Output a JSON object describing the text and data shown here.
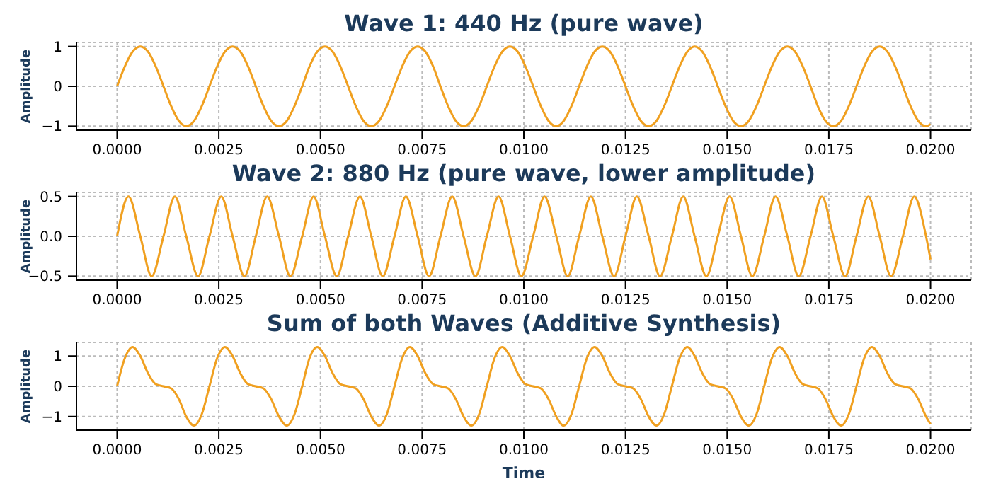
{
  "chart_data": [
    {
      "type": "line",
      "title": "Wave 1: 440 Hz (pure wave)",
      "ylabel": "Amplitude",
      "grid": true,
      "x": [
        0,
        0.00019,
        0.00038,
        0.00057,
        0.00076,
        0.00095,
        0.00114,
        0.00133,
        0.00152,
        0.0017,
        0.00189,
        0.00208,
        0.00227,
        0.00246,
        0.00265,
        0.00284,
        0.00303,
        0.00322,
        0.00341,
        0.0036,
        0.00379,
        0.00398,
        0.00417,
        0.00436,
        0.00455,
        0.00473,
        0.00492,
        0.00511,
        0.0053,
        0.00549,
        0.00568,
        0.00587,
        0.00606,
        0.00625,
        0.00644,
        0.00663,
        0.00682,
        0.00701,
        0.0072,
        0.00739,
        0.00758,
        0.00777,
        0.00795,
        0.00814,
        0.00833,
        0.00852,
        0.00871,
        0.0089,
        0.00909,
        0.00928,
        0.00947,
        0.00966,
        0.00985,
        0.01004,
        0.01023,
        0.01042,
        0.01061,
        0.0108,
        0.01098,
        0.01117,
        0.01136,
        0.01155,
        0.01174,
        0.01193,
        0.01212,
        0.01231,
        0.0125,
        0.01269,
        0.01288,
        0.01307,
        0.01326,
        0.01345,
        0.01364,
        0.01383,
        0.01402,
        0.0142,
        0.01439,
        0.01458,
        0.01477,
        0.01496,
        0.01515,
        0.01534,
        0.01553,
        0.01572,
        0.01591,
        0.0161,
        0.01629,
        0.01648,
        0.01667,
        0.01686,
        0.01705,
        0.01723,
        0.01742,
        0.01761,
        0.0178,
        0.01799,
        0.01818,
        0.01837,
        0.01856,
        0.01875,
        0.01894,
        0.01913,
        0.01932,
        0.01951,
        0.0197,
        0.01989,
        0.02
      ],
      "series": [
        {
          "color": "#f0a020",
          "values": [
            0,
            0.5,
            0.87,
            1,
            0.87,
            0.5,
            0,
            -0.5,
            -0.87,
            -1,
            -0.87,
            -0.5,
            0,
            0.5,
            0.87,
            1,
            0.87,
            0.5,
            0,
            -0.5,
            -0.87,
            -1,
            -0.87,
            -0.5,
            0,
            0.5,
            0.87,
            1,
            0.87,
            0.5,
            0,
            -0.5,
            -0.87,
            -1,
            -0.87,
            -0.5,
            0,
            0.5,
            0.87,
            1,
            0.87,
            0.5,
            0,
            -0.5,
            -0.87,
            -1,
            -0.87,
            -0.5,
            0,
            0.5,
            0.87,
            1,
            0.87,
            0.5,
            0,
            -0.5,
            -0.87,
            -1,
            -0.87,
            -0.5,
            0,
            0.5,
            0.87,
            1,
            0.87,
            0.5,
            0,
            -0.5,
            -0.87,
            -1,
            -0.87,
            -0.5,
            0,
            0.5,
            0.87,
            1,
            0.87,
            0.5,
            0,
            -0.5,
            -0.87,
            -1,
            -0.87,
            -0.5,
            0,
            0.5,
            0.87,
            1,
            0.87,
            0.5,
            0,
            -0.5,
            -0.87,
            -1,
            -0.87,
            -0.5,
            0,
            0.5,
            0.87,
            1,
            0.87,
            0.5,
            0,
            -0.5,
            -0.87,
            -1,
            -0.95
          ]
        }
      ],
      "xlim": [
        -0.001,
        0.021
      ],
      "ylim": [
        -1.1,
        1.1
      ],
      "xticks": [
        {
          "value": 0,
          "label": "0.0000"
        },
        {
          "value": 0.0025,
          "label": "0.0025"
        },
        {
          "value": 0.005,
          "label": "0.0050"
        },
        {
          "value": 0.0075,
          "label": "0.0075"
        },
        {
          "value": 0.01,
          "label": "0.0100"
        },
        {
          "value": 0.0125,
          "label": "0.0125"
        },
        {
          "value": 0.015,
          "label": "0.0150"
        },
        {
          "value": 0.0175,
          "label": "0.0175"
        },
        {
          "value": 0.02,
          "label": "0.0200"
        }
      ],
      "yticks": [
        {
          "value": -1,
          "label": "−1"
        },
        {
          "value": 0,
          "label": "0"
        },
        1
      ]
    },
    {
      "type": "line",
      "title": "Wave 2: 880 Hz (pure wave, lower amplitude)",
      "ylabel": "Amplitude",
      "grid": true,
      "x": [
        0,
        0.00028,
        0.00057,
        0.00085,
        0.00114,
        0.00142,
        0.0017,
        0.00199,
        0.00227,
        0.00256,
        0.00284,
        0.00313,
        0.00341,
        0.00369,
        0.00398,
        0.00426,
        0.00455,
        0.00483,
        0.00511,
        0.0054,
        0.00568,
        0.00597,
        0.00625,
        0.00653,
        0.00682,
        0.0071,
        0.00739,
        0.00767,
        0.00795,
        0.00824,
        0.00852,
        0.00881,
        0.00909,
        0.00938,
        0.00966,
        0.00994,
        0.01023,
        0.01051,
        0.0108,
        0.01108,
        0.01136,
        0.01165,
        0.01193,
        0.01222,
        0.0125,
        0.01278,
        0.01307,
        0.01335,
        0.01364,
        0.01392,
        0.0142,
        0.01449,
        0.01477,
        0.01506,
        0.01534,
        0.01562,
        0.01591,
        0.01619,
        0.01648,
        0.01676,
        0.01705,
        0.01733,
        0.01761,
        0.0179,
        0.01818,
        0.01847,
        0.01875,
        0.01903,
        0.01932,
        0.0196,
        0.01989,
        0.02
      ],
      "series": [
        {
          "color": "#f0a020",
          "values": [
            0,
            0.5,
            0,
            -0.5,
            0,
            0.5,
            0,
            -0.5,
            0,
            0.5,
            0,
            -0.5,
            0,
            0.5,
            0,
            -0.5,
            0,
            0.5,
            0,
            -0.5,
            0,
            0.5,
            0,
            -0.5,
            0,
            0.5,
            0,
            -0.5,
            0,
            0.5,
            0,
            -0.5,
            0,
            0.5,
            0,
            -0.5,
            0,
            0.5,
            0,
            -0.5,
            0,
            0.5,
            0,
            -0.5,
            0,
            0.5,
            0,
            -0.5,
            0,
            0.5,
            0,
            -0.5,
            0,
            0.5,
            0,
            -0.5,
            0,
            0.5,
            0,
            -0.5,
            0,
            0.5,
            0,
            -0.5,
            0,
            0.5,
            0,
            -0.5,
            0,
            0.5,
            0,
            -0.29
          ]
        }
      ],
      "xlim": [
        -0.001,
        0.021
      ],
      "ylim": [
        -0.55,
        0.55
      ],
      "xticks": [
        {
          "value": 0,
          "label": "0.0000"
        },
        {
          "value": 0.0025,
          "label": "0.0025"
        },
        {
          "value": 0.005,
          "label": "0.0050"
        },
        {
          "value": 0.0075,
          "label": "0.0075"
        },
        {
          "value": 0.01,
          "label": "0.0100"
        },
        {
          "value": 0.0125,
          "label": "0.0125"
        },
        {
          "value": 0.015,
          "label": "0.0150"
        },
        {
          "value": 0.0175,
          "label": "0.0175"
        },
        {
          "value": 0.02,
          "label": "0.0200"
        }
      ],
      "yticks": [
        {
          "value": -0.5,
          "label": "−0.5"
        },
        {
          "value": 0,
          "label": "0.0"
        },
        {
          "value": 0.5,
          "label": "0.5"
        }
      ]
    },
    {
      "type": "line",
      "title": "Sum of both Waves (Additive Synthesis)",
      "xlabel": "Time",
      "ylabel": "Amplitude",
      "grid": true,
      "x": [
        0,
        0.00019,
        0.00038,
        0.00057,
        0.00076,
        0.00095,
        0.00114,
        0.00133,
        0.00152,
        0.0017,
        0.00189,
        0.00208,
        0.00227,
        0.00246,
        0.00265,
        0.00284,
        0.00303,
        0.00322,
        0.00341,
        0.0036,
        0.00379,
        0.00398,
        0.00417,
        0.00436,
        0.00455,
        0.00473,
        0.00492,
        0.00511,
        0.0053,
        0.00549,
        0.00568,
        0.00587,
        0.00606,
        0.00625,
        0.00644,
        0.00663,
        0.00682,
        0.00701,
        0.0072,
        0.00739,
        0.00758,
        0.00777,
        0.00795,
        0.00814,
        0.00833,
        0.00852,
        0.00871,
        0.0089,
        0.00909,
        0.00928,
        0.00947,
        0.00966,
        0.00985,
        0.01004,
        0.01023,
        0.01042,
        0.01061,
        0.0108,
        0.01098,
        0.01117,
        0.01136,
        0.01155,
        0.01174,
        0.01193,
        0.01212,
        0.01231,
        0.0125,
        0.01269,
        0.01288,
        0.01307,
        0.01326,
        0.01345,
        0.01364,
        0.01383,
        0.01402,
        0.0142,
        0.01439,
        0.01458,
        0.01477,
        0.01496,
        0.01515,
        0.01534,
        0.01553,
        0.01572,
        0.01591,
        0.0161,
        0.01629,
        0.01648,
        0.01667,
        0.01686,
        0.01705,
        0.01723,
        0.01742,
        0.01761,
        0.0178,
        0.01799,
        0.01818,
        0.01837,
        0.01856,
        0.01875,
        0.01894,
        0.01913,
        0.01932,
        0.01951,
        0.0197,
        0.01989,
        0.02
      ],
      "series": [
        {
          "color": "#f0a020",
          "values": [
            0,
            0.93,
            1.3,
            1,
            0.43,
            0.07,
            0,
            -0.07,
            -0.43,
            -1,
            -1.3,
            -0.93,
            0,
            0.93,
            1.3,
            1,
            0.43,
            0.07,
            0,
            -0.07,
            -0.43,
            -1,
            -1.3,
            -0.93,
            0,
            0.93,
            1.3,
            1,
            0.43,
            0.07,
            0,
            -0.07,
            -0.43,
            -1,
            -1.3,
            -0.93,
            0,
            0.93,
            1.3,
            1,
            0.43,
            0.07,
            0,
            -0.07,
            -0.43,
            -1,
            -1.3,
            -0.93,
            0,
            0.93,
            1.3,
            1,
            0.43,
            0.07,
            0,
            -0.07,
            -0.43,
            -1,
            -1.3,
            -0.93,
            0,
            0.93,
            1.3,
            1,
            0.43,
            0.07,
            0,
            -0.07,
            -0.43,
            -1,
            -1.3,
            -0.93,
            0,
            0.93,
            1.3,
            1,
            0.43,
            0.07,
            0,
            -0.07,
            -0.43,
            -1,
            -1.3,
            -0.93,
            0,
            0.93,
            1.3,
            1,
            0.43,
            0.07,
            0,
            -0.07,
            -0.43,
            -1,
            -1.3,
            -0.93,
            0,
            0.93,
            1.3,
            1,
            0.43,
            0.07,
            0,
            -0.07,
            -0.43,
            -1,
            -1.25
          ]
        }
      ],
      "xlim": [
        -0.001,
        0.021
      ],
      "ylim": [
        -1.45,
        1.45
      ],
      "xticks": [
        {
          "value": 0,
          "label": "0.0000"
        },
        {
          "value": 0.0025,
          "label": "0.0025"
        },
        {
          "value": 0.005,
          "label": "0.0050"
        },
        {
          "value": 0.0075,
          "label": "0.0075"
        },
        {
          "value": 0.01,
          "label": "0.0100"
        },
        {
          "value": 0.0125,
          "label": "0.0125"
        },
        {
          "value": 0.015,
          "label": "0.0150"
        },
        {
          "value": 0.0175,
          "label": "0.0175"
        },
        {
          "value": 0.02,
          "label": "0.0200"
        }
      ],
      "yticks": [
        {
          "value": -1,
          "label": "−1"
        },
        {
          "value": 0,
          "label": "0"
        },
        1
      ]
    }
  ]
}
